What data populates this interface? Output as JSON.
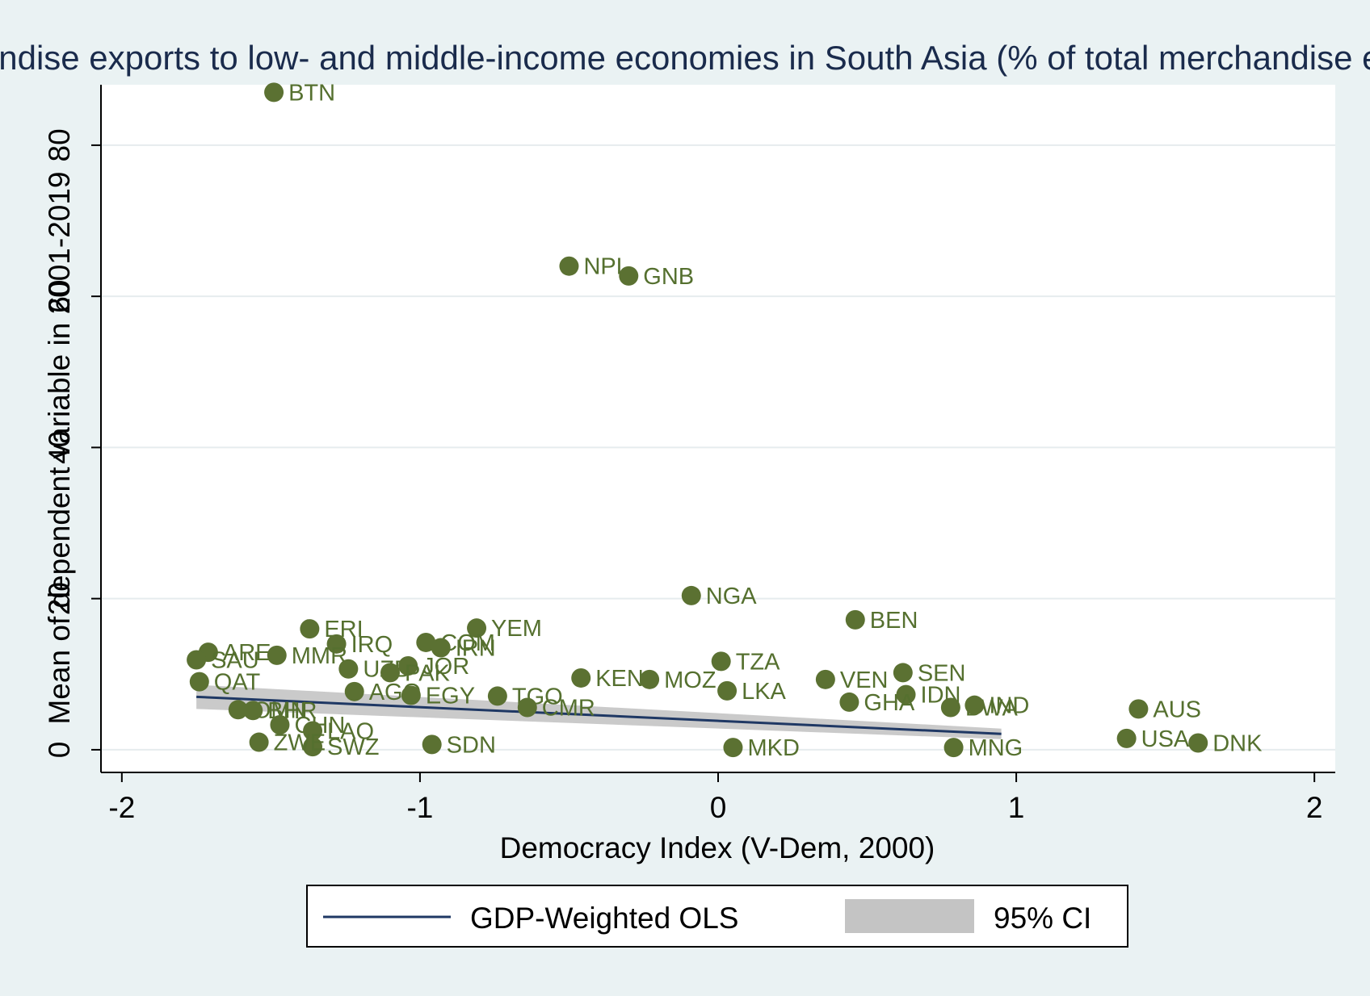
{
  "chart_data": {
    "type": "scatter",
    "title": "Merchandise exports to low- and middle-income economies in South Asia (% of total merchandise exports)",
    "xlabel": "Democracy Index (V-Dem, 2000)",
    "ylabel": "Mean of dependent variable in 2001-2019",
    "xlim": [
      -2.07,
      2.07
    ],
    "ylim": [
      -3,
      88
    ],
    "xticks": [
      -2,
      -1,
      0,
      1,
      2
    ],
    "xtick_labels": [
      "-2",
      "-1",
      "0",
      "1",
      "2"
    ],
    "yticks": [
      0,
      20,
      40,
      60,
      80
    ],
    "ytick_labels": [
      "0",
      "20",
      "40",
      "60",
      "80"
    ],
    "grid": true,
    "colors": {
      "points": "#5b7132",
      "labels": "#55702f",
      "fit_line": "#1f3864",
      "ci_band": "#c4c4c4",
      "plot_background": "#ffffff",
      "outer_background": "#eaf2f3",
      "title": "#1a2b4c"
    },
    "series": [
      {
        "type": "scatter",
        "points": [
          {
            "label": "BTN",
            "x": -1.49,
            "y": 87.0
          },
          {
            "label": "NPL",
            "x": -0.5,
            "y": 64.0
          },
          {
            "label": "GNB",
            "x": -0.3,
            "y": 62.7
          },
          {
            "label": "NGA",
            "x": -0.09,
            "y": 20.4
          },
          {
            "label": "BEN",
            "x": 0.46,
            "y": 17.2
          },
          {
            "label": "YEM",
            "x": -0.81,
            "y": 16.1
          },
          {
            "label": "ERI",
            "x": -1.37,
            "y": 16.0
          },
          {
            "label": "IRQ",
            "x": -1.28,
            "y": 14.0
          },
          {
            "label": "ARE",
            "x": -1.71,
            "y": 12.9
          },
          {
            "label": "SAU",
            "x": -1.75,
            "y": 11.9
          },
          {
            "label": "MMR",
            "x": -1.48,
            "y": 12.5
          },
          {
            "label": "COM",
            "x": -0.98,
            "y": 14.2
          },
          {
            "label": "IRN",
            "x": -0.93,
            "y": 13.5
          },
          {
            "label": "UZB",
            "x": -1.24,
            "y": 10.7
          },
          {
            "label": "JOR",
            "x": -1.04,
            "y": 11.1
          },
          {
            "label": "PAK",
            "x": -1.1,
            "y": 10.2
          },
          {
            "label": "TZA",
            "x": 0.01,
            "y": 11.7
          },
          {
            "label": "QAT",
            "x": -1.74,
            "y": 9.0
          },
          {
            "label": "KEN",
            "x": -0.46,
            "y": 9.5
          },
          {
            "label": "MOZ",
            "x": -0.23,
            "y": 9.3
          },
          {
            "label": "VEN",
            "x": 0.36,
            "y": 9.3
          },
          {
            "label": "SEN",
            "x": 0.62,
            "y": 10.2
          },
          {
            "label": "AGO",
            "x": -1.22,
            "y": 7.7
          },
          {
            "label": "EGY",
            "x": -1.03,
            "y": 7.2
          },
          {
            "label": "LKA",
            "x": 0.03,
            "y": 7.8
          },
          {
            "label": "IDN",
            "x": 0.63,
            "y": 7.3
          },
          {
            "label": "TGO",
            "x": -0.74,
            "y": 7.1
          },
          {
            "label": "GHA",
            "x": 0.44,
            "y": 6.3
          },
          {
            "label": "BWA",
            "x": 0.78,
            "y": 5.6
          },
          {
            "label": "IND",
            "x": 0.86,
            "y": 5.9
          },
          {
            "label": "AUS",
            "x": 1.41,
            "y": 5.4
          },
          {
            "label": "OMN",
            "x": -1.61,
            "y": 5.3
          },
          {
            "label": "BHR",
            "x": -1.56,
            "y": 5.2
          },
          {
            "label": "CMR",
            "x": -0.64,
            "y": 5.6
          },
          {
            "label": "CHN",
            "x": -1.47,
            "y": 3.3
          },
          {
            "label": "LAO",
            "x": -1.36,
            "y": 2.5
          },
          {
            "label": "SWZ",
            "x": -1.36,
            "y": 0.4
          },
          {
            "label": "ZWE",
            "x": -1.54,
            "y": 1.0
          },
          {
            "label": "SDN",
            "x": -0.96,
            "y": 0.7
          },
          {
            "label": "MKD",
            "x": 0.05,
            "y": 0.3
          },
          {
            "label": "MNG",
            "x": 0.79,
            "y": 0.3
          },
          {
            "label": "USA",
            "x": 1.37,
            "y": 1.5
          },
          {
            "label": "DNK",
            "x": 1.61,
            "y": 0.9
          }
        ]
      }
    ],
    "legend": {
      "position": "bottom",
      "entries": [
        "GDP-Weighted OLS",
        "95% CI"
      ]
    },
    "fit_line": {
      "x": [
        -1.75,
        0.95
      ],
      "y": [
        7.0,
        2.1
      ]
    },
    "ci_band": {
      "x": [
        -1.75,
        0.95
      ],
      "lower": [
        5.4,
        1.4
      ],
      "upper": [
        8.6,
        2.8
      ]
    }
  }
}
